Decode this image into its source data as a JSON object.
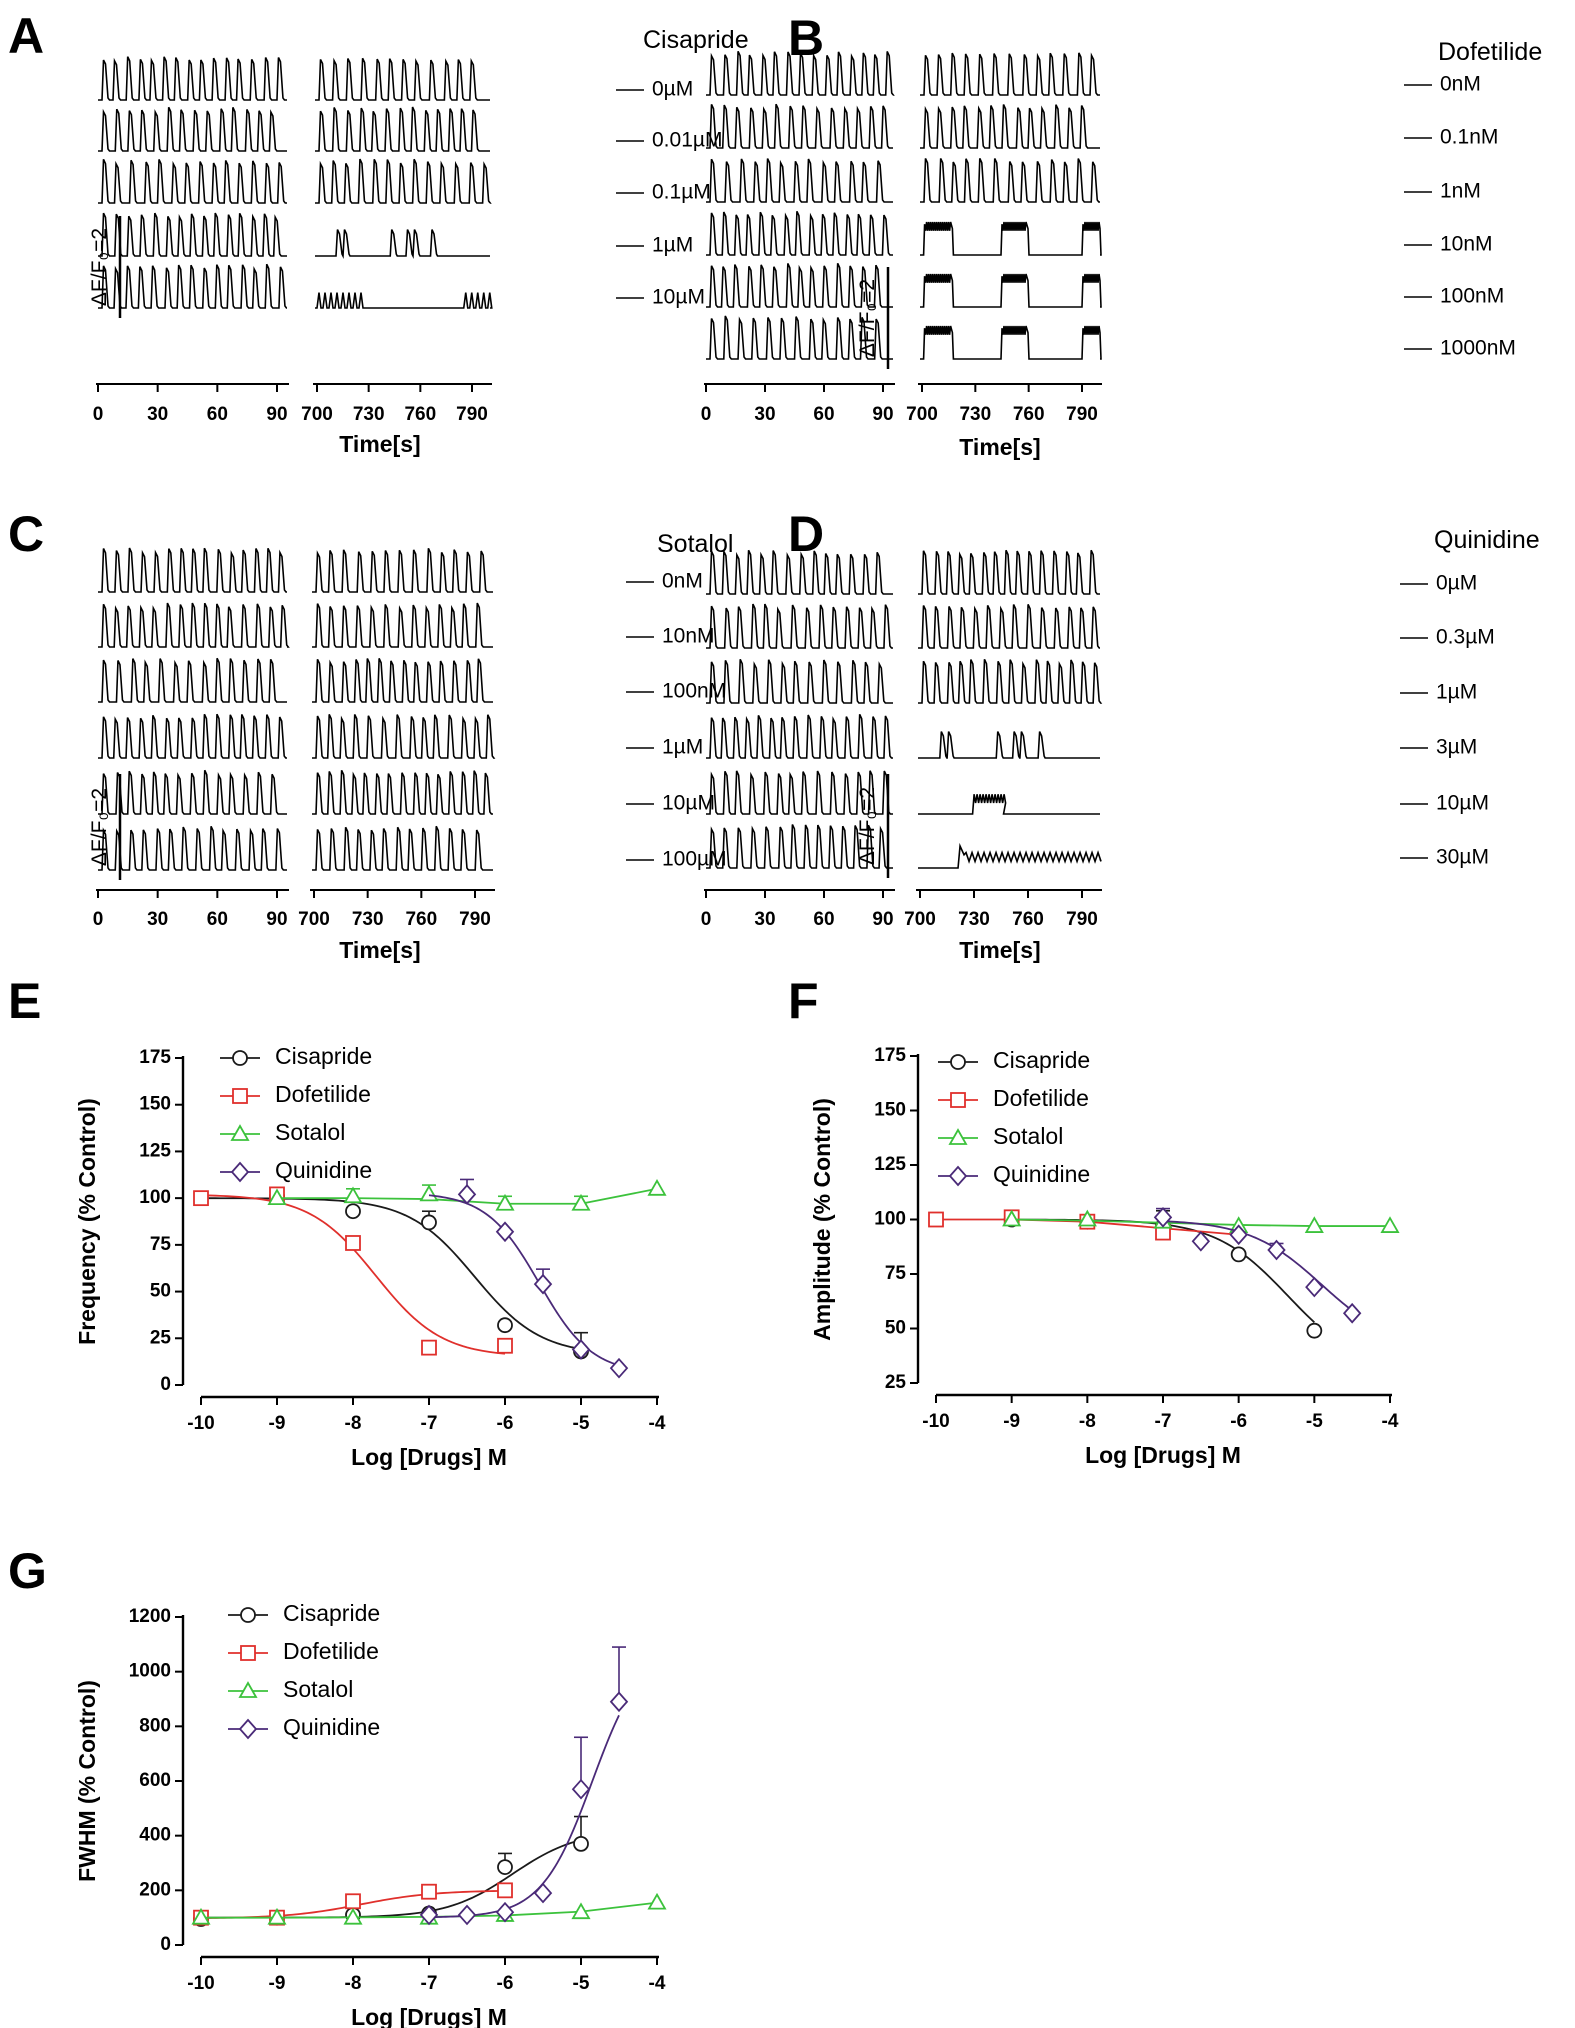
{
  "colors": {
    "Cisapride": "#1a1a1a",
    "Dofetilide": "#e0302c",
    "Sotalol": "#3cc23c",
    "Quinidine": "#4a2a78",
    "axis": "#000000"
  },
  "chart_data": [
    {
      "id": "A",
      "type": "line",
      "subtype": "calcium-traces",
      "panel_label": "A",
      "title": "Cisapride",
      "xlabel": "Time[s]",
      "x_ticks_left": [
        "0",
        "30",
        "60",
        "90"
      ],
      "x_ticks_right": [
        "700",
        "730",
        "760",
        "790"
      ],
      "scale_label": "ΔF/F₀=2",
      "traces": [
        {
          "conc": "0µM",
          "left": "regular",
          "right": "regular"
        },
        {
          "conc": "0.01µM",
          "left": "regular",
          "right": "regular"
        },
        {
          "conc": "0.1µM",
          "left": "regular",
          "right": "regular"
        },
        {
          "conc": "1µM",
          "left": "regular",
          "right": "sparse"
        },
        {
          "conc": "10µM",
          "left": "regular",
          "right": "fibrillation"
        }
      ]
    },
    {
      "id": "B",
      "type": "line",
      "subtype": "calcium-traces",
      "panel_label": "B",
      "title": "Dofetilide",
      "xlabel": "Time[s]",
      "x_ticks_left": [
        "0",
        "30",
        "60",
        "90"
      ],
      "x_ticks_right": [
        "700",
        "730",
        "760",
        "790"
      ],
      "scale_label": "ΔF/F₀=2",
      "traces": [
        {
          "conc": "0nM",
          "left": "regular",
          "right": "regular"
        },
        {
          "conc": "0.1nM",
          "left": "regular",
          "right": "regular"
        },
        {
          "conc": "1nM",
          "left": "regular",
          "right": "regular"
        },
        {
          "conc": "10nM",
          "left": "regular",
          "right": "bursts"
        },
        {
          "conc": "100nM",
          "left": "regular",
          "right": "bursts"
        },
        {
          "conc": "1000nM",
          "left": "regular",
          "right": "bursts"
        }
      ]
    },
    {
      "id": "C",
      "type": "line",
      "subtype": "calcium-traces",
      "panel_label": "C",
      "title": "Sotalol",
      "xlabel": "Time[s]",
      "x_ticks_left": [
        "0",
        "30",
        "60",
        "90"
      ],
      "x_ticks_right": [
        "700",
        "730",
        "760",
        "790"
      ],
      "scale_label": "ΔF/F₀=2",
      "traces": [
        {
          "conc": "0nM",
          "left": "regular",
          "right": "regular"
        },
        {
          "conc": "10nM",
          "left": "regular",
          "right": "regular"
        },
        {
          "conc": "100nM",
          "left": "regular",
          "right": "regular"
        },
        {
          "conc": "1µM",
          "left": "regular",
          "right": "regular"
        },
        {
          "conc": "10µM",
          "left": "regular",
          "right": "regular"
        },
        {
          "conc": "100µM",
          "left": "regular",
          "right": "regular"
        }
      ]
    },
    {
      "id": "D",
      "type": "line",
      "subtype": "calcium-traces",
      "panel_label": "D",
      "title": "Quinidine",
      "xlabel": "Time[s]",
      "x_ticks_left": [
        "0",
        "30",
        "60",
        "90"
      ],
      "x_ticks_right": [
        "700",
        "730",
        "760",
        "790"
      ],
      "scale_label": "ΔF/F₀=2",
      "traces": [
        {
          "conc": "0µM",
          "left": "regular",
          "right": "regular"
        },
        {
          "conc": "0.3µM",
          "left": "regular",
          "right": "regular"
        },
        {
          "conc": "1µM",
          "left": "regular",
          "right": "regular"
        },
        {
          "conc": "3µM",
          "left": "regular",
          "right": "sparse"
        },
        {
          "conc": "10µM",
          "left": "regular",
          "right": "burst-flat"
        },
        {
          "conc": "30µM",
          "left": "regular",
          "right": "oscillation"
        }
      ]
    },
    {
      "id": "E",
      "type": "scatter",
      "panel_label": "E",
      "xlabel": "Log [Drugs] M",
      "ylabel": "Frequency (% Control)",
      "xlim": [
        -10,
        -4
      ],
      "ylim": [
        0,
        175
      ],
      "xticks": [
        -10,
        -9,
        -8,
        -7,
        -6,
        -5,
        -4
      ],
      "yticks": [
        0,
        25,
        50,
        75,
        100,
        125,
        150,
        175
      ],
      "series": [
        {
          "name": "Cisapride",
          "marker": "circle",
          "x": [
            -9,
            -8,
            -7,
            -6,
            -5
          ],
          "y": [
            101,
            93,
            87,
            32,
            18
          ],
          "err": [
            0,
            0,
            6,
            0,
            10
          ],
          "fit": {
            "top": 100,
            "bottom": 16,
            "logec50": -6.4,
            "hill": 1.0,
            "from": -10,
            "to": -5
          }
        },
        {
          "name": "Dofetilide",
          "marker": "square",
          "x": [
            -10,
            -9,
            -8,
            -7,
            -6
          ],
          "y": [
            100,
            102,
            76,
            20,
            21
          ],
          "err": [
            0,
            0,
            0,
            0,
            0
          ],
          "fit": {
            "top": 102,
            "bottom": 15,
            "logec50": -7.7,
            "hill": 1.0,
            "from": -10,
            "to": -6
          }
        },
        {
          "name": "Sotalol",
          "marker": "triangle",
          "x": [
            -9,
            -8,
            -7,
            -6,
            -5,
            -4
          ],
          "y": [
            100,
            101,
            102,
            97,
            97,
            105
          ],
          "err": [
            0,
            4,
            5,
            4,
            4,
            0
          ],
          "fit": {
            "points": [
              [
                -9,
                100
              ],
              [
                -8,
                100
              ],
              [
                -7,
                99.5
              ],
              [
                -6,
                97
              ],
              [
                -5,
                97
              ],
              [
                -4,
                105
              ]
            ]
          }
        },
        {
          "name": "Quinidine",
          "marker": "diamond",
          "x": [
            -6.5,
            -6,
            -5.5,
            -5,
            -4.5
          ],
          "y": [
            102,
            82,
            54,
            19,
            9
          ],
          "err": [
            8,
            0,
            8,
            0,
            0
          ],
          "fit": {
            "top": 103,
            "bottom": 6,
            "logec50": -5.55,
            "hill": 1.25,
            "from": -7,
            "to": -4.5
          }
        }
      ]
    },
    {
      "id": "F",
      "type": "scatter",
      "panel_label": "F",
      "xlabel": "Log [Drugs] M",
      "ylabel": "Amplitude (% Control)",
      "xlim": [
        -10,
        -4
      ],
      "ylim": [
        25,
        175
      ],
      "xticks": [
        -10,
        -9,
        -8,
        -7,
        -6,
        -5,
        -4
      ],
      "yticks": [
        25,
        50,
        75,
        100,
        125,
        150,
        175
      ],
      "series": [
        {
          "name": "Cisapride",
          "marker": "circle",
          "x": [
            -9,
            -8,
            -7,
            -6,
            -5
          ],
          "y": [
            100,
            99,
            97,
            84,
            49
          ],
          "err": [
            0,
            0,
            7,
            0,
            0
          ],
          "fit": {
            "top": 100,
            "bottom": 30,
            "logec50": -5.35,
            "hill": 0.9,
            "from": -9,
            "to": -5
          }
        },
        {
          "name": "Dofetilide",
          "marker": "square",
          "x": [
            -10,
            -9,
            -8,
            -7
          ],
          "y": [
            100,
            101,
            99,
            94
          ],
          "err": [
            0,
            0,
            0,
            0
          ],
          "fit": {
            "points": [
              [
                -10,
                100
              ],
              [
                -9,
                100
              ],
              [
                -8,
                99
              ],
              [
                -7,
                96
              ],
              [
                -6,
                93
              ]
            ]
          }
        },
        {
          "name": "Sotalol",
          "marker": "triangle",
          "x": [
            -9,
            -8,
            -7,
            -6,
            -5,
            -4
          ],
          "y": [
            100,
            100,
            99,
            97,
            97,
            97
          ],
          "err": [
            0,
            0,
            0,
            0,
            0,
            0
          ],
          "fit": {
            "points": [
              [
                -9,
                100
              ],
              [
                -8,
                99.5
              ],
              [
                -7,
                98.5
              ],
              [
                -6,
                97.5
              ],
              [
                -5,
                97
              ],
              [
                -4,
                97
              ]
            ]
          }
        },
        {
          "name": "Quinidine",
          "marker": "diamond",
          "x": [
            -7,
            -6.5,
            -6,
            -5.5,
            -5,
            -4.5
          ],
          "y": [
            101,
            90,
            93,
            86,
            69,
            57
          ],
          "err": [
            4,
            0,
            0,
            3,
            0,
            0
          ],
          "fit": {
            "top": 100,
            "bottom": 40,
            "logec50": -4.9,
            "hill": 0.9,
            "from": -7,
            "to": -4.5
          }
        }
      ]
    },
    {
      "id": "G",
      "type": "scatter",
      "panel_label": "G",
      "xlabel": "Log [Drugs] M",
      "ylabel": "FWHM (% Control)",
      "xlim": [
        -10,
        -4
      ],
      "ylim": [
        0,
        1200
      ],
      "xticks": [
        -10,
        -9,
        -8,
        -7,
        -6,
        -5,
        -4
      ],
      "yticks": [
        0,
        200,
        400,
        600,
        800,
        1000,
        1200
      ],
      "series": [
        {
          "name": "Cisapride",
          "marker": "circle",
          "x": [
            -10,
            -9,
            -8,
            -7,
            -6,
            -5
          ],
          "y": [
            95,
            100,
            110,
            115,
            285,
            370
          ],
          "err": [
            0,
            0,
            0,
            0,
            50,
            100
          ],
          "fit": {
            "top": 420,
            "bottom": 100,
            "logec50": -5.9,
            "hill": 1.0,
            "from": -10,
            "to": -5
          }
        },
        {
          "name": "Dofetilide",
          "marker": "square",
          "x": [
            -10,
            -9,
            -8,
            -7,
            -6
          ],
          "y": [
            100,
            100,
            160,
            195,
            200
          ],
          "err": [
            0,
            0,
            0,
            0,
            0
          ],
          "fit": {
            "top": 200,
            "bottom": 97,
            "logec50": -7.9,
            "hill": 0.9,
            "from": -10,
            "to": -6
          }
        },
        {
          "name": "Sotalol",
          "marker": "triangle",
          "x": [
            -10,
            -9,
            -8,
            -7,
            -6,
            -5,
            -4
          ],
          "y": [
            100,
            100,
            100,
            100,
            110,
            120,
            155
          ],
          "err": [
            0,
            0,
            0,
            0,
            0,
            0,
            0
          ],
          "fit": {
            "points": [
              [
                -10,
                100
              ],
              [
                -9,
                100
              ],
              [
                -8,
                101
              ],
              [
                -7,
                103
              ],
              [
                -6,
                108
              ],
              [
                -5,
                122
              ],
              [
                -4,
                155
              ]
            ]
          }
        },
        {
          "name": "Quinidine",
          "marker": "diamond",
          "x": [
            -7,
            -6.5,
            -6,
            -5.5,
            -5,
            -4.5
          ],
          "y": [
            110,
            110,
            120,
            190,
            570,
            890
          ],
          "err": [
            0,
            0,
            0,
            0,
            190,
            200
          ],
          "fit": {
            "top": 1100,
            "bottom": 100,
            "logec50": -4.85,
            "hill": 1.3,
            "from": -7,
            "to": -4.5
          }
        }
      ]
    }
  ]
}
